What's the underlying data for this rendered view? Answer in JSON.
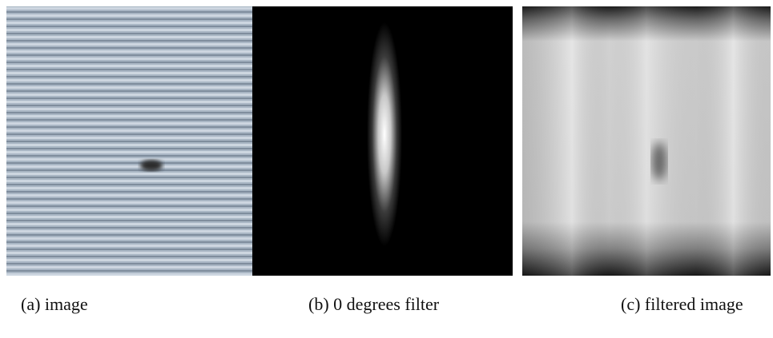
{
  "figure": {
    "panels": [
      {
        "caption": "(a) image"
      },
      {
        "caption": "(b) 0 degrees filter"
      },
      {
        "caption": "(c) filtered image"
      }
    ]
  }
}
